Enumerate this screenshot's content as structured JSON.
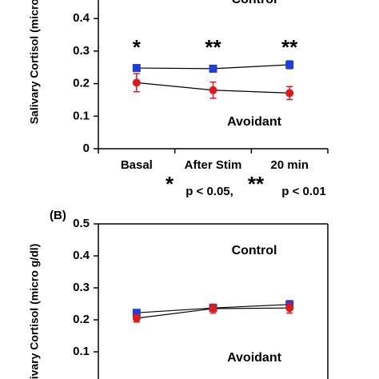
{
  "chart_data": [
    {
      "type": "line",
      "categories": [
        "Basal",
        "After Stim",
        "20 min"
      ],
      "ylabel": "Salivary Cortisol (micro g/dl)",
      "ylim": [
        0,
        0.5
      ],
      "yticks": [
        0,
        0.1,
        0.2,
        0.3,
        0.4
      ],
      "series": [
        {
          "name": "Control",
          "color": "#1f3fd8",
          "marker": "square",
          "values": [
            0.248,
            0.246,
            0.258
          ],
          "errors": [
            0.01,
            0.01,
            0.012
          ]
        },
        {
          "name": "Avoidant",
          "color": "#e01a1a",
          "marker": "circle",
          "values": [
            0.203,
            0.18,
            0.171
          ],
          "errors": [
            0.028,
            0.025,
            0.02
          ]
        }
      ],
      "significance": [
        "*",
        "**",
        "**"
      ],
      "note": [
        "*",
        "p < 0.05,",
        "**",
        "p < 0.01"
      ]
    },
    {
      "type": "line",
      "label": "(B)",
      "categories": [
        null,
        null,
        null
      ],
      "ylabel": "Salivary Cortisol (micro g/dl)",
      "ylim": [
        0,
        0.5
      ],
      "yticks": [
        0.1,
        0.2,
        0.3,
        0.4,
        0.5
      ],
      "series": [
        {
          "name": "Control",
          "color": "#1f3fd8",
          "marker": "square",
          "values": [
            0.222,
            0.237,
            0.248
          ],
          "errors": [
            0.01,
            0.01,
            0.012
          ]
        },
        {
          "name": "Avoidant",
          "color": "#e01a1a",
          "marker": "circle",
          "values": [
            0.205,
            0.235,
            0.237
          ],
          "errors": [
            0.012,
            0.014,
            0.016
          ]
        }
      ]
    }
  ]
}
